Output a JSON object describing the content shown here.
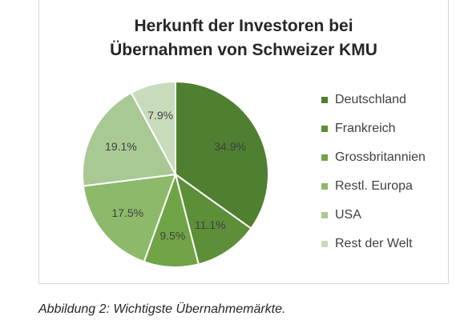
{
  "chart_data": {
    "type": "pie",
    "title": [
      "Herkunft der Investoren bei",
      "Übernahmen von Schweizer KMU"
    ],
    "slices": [
      {
        "name": "Deutschland",
        "value": 34.9,
        "label": "34.9%",
        "color": "#4f7f30"
      },
      {
        "name": "Frankreich",
        "value": 11.1,
        "label": "11.1%",
        "color": "#5d8e38"
      },
      {
        "name": "Grossbritannien",
        "value": 9.5,
        "label": "9.5%",
        "color": "#70a446"
      },
      {
        "name": "Restl. Europa",
        "value": 17.5,
        "label": "17.5%",
        "color": "#8db96a"
      },
      {
        "name": "USA",
        "value": 19.1,
        "label": "19.1%",
        "color": "#a8c993"
      },
      {
        "name": "Rest der Welt",
        "value": 7.9,
        "label": "7.9%",
        "color": "#c8dcbc"
      }
    ],
    "legend_position": "right"
  },
  "caption": "Abbildung 2: Wichtigste Übernahmemärkte."
}
